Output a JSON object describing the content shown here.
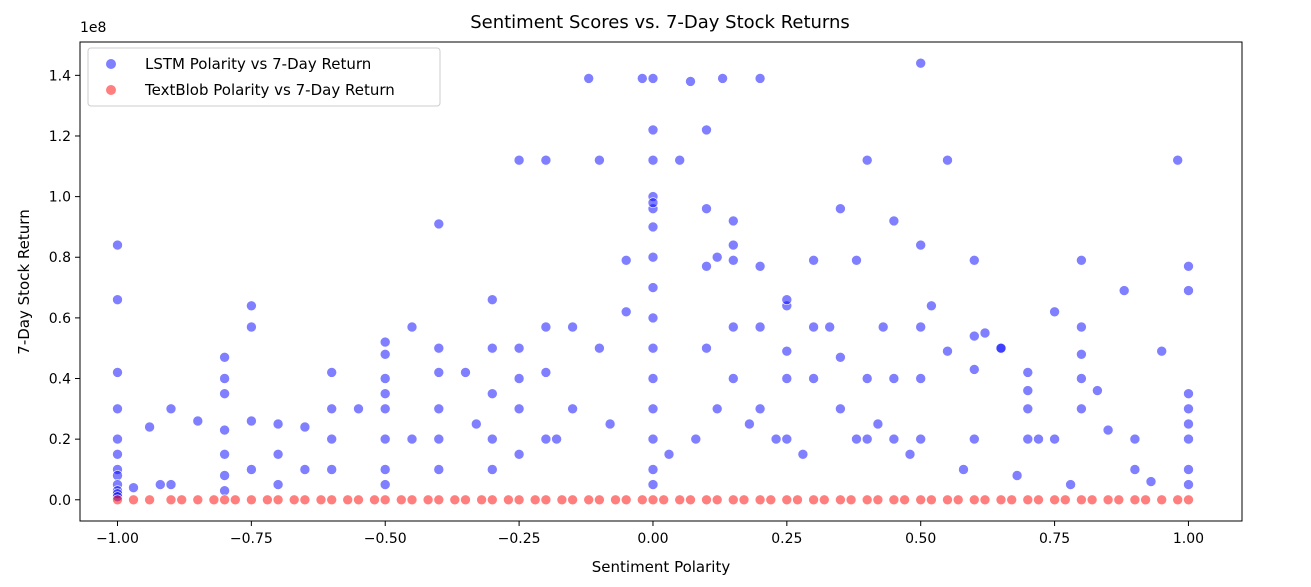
{
  "chart_data": {
    "type": "scatter",
    "title": "Sentiment Scores vs. 7-Day Stock Returns",
    "xlabel": "Sentiment Polarity",
    "ylabel": "7-Day Stock Return",
    "y_multiplier_label": "1e8",
    "xlim": [
      -1.07,
      1.1
    ],
    "ylim": [
      -0.07,
      1.51
    ],
    "x_ticks": [
      -1.0,
      -0.75,
      -0.5,
      -0.25,
      0.0,
      0.25,
      0.5,
      0.75,
      1.0
    ],
    "x_tick_labels": [
      "−1.00",
      "−0.75",
      "−0.50",
      "−0.25",
      "0.00",
      "0.25",
      "0.50",
      "0.75",
      "1.00"
    ],
    "y_ticks": [
      0.0,
      0.2,
      0.4,
      0.6,
      0.8,
      1.0,
      1.2,
      1.4
    ],
    "y_tick_labels": [
      "0.0",
      "0.2",
      "0.4",
      "0.6",
      "0.8",
      "1.0",
      "1.2",
      "1.4"
    ],
    "grid": false,
    "legend_position": "top-left",
    "series": [
      {
        "name": "LSTM Polarity vs 7-Day Return",
        "color": "#0000ff",
        "alpha": 0.5,
        "x": [
          -1.0,
          -1.0,
          -1.0,
          -1.0,
          -1.0,
          -1.0,
          -1.0,
          -1.0,
          -1.0,
          -1.0,
          -1.0,
          -1.0,
          -0.97,
          -0.94,
          -0.9,
          -0.9,
          -0.8,
          -0.8,
          -0.8,
          -0.8,
          -0.8,
          -0.8,
          -0.8,
          -0.75,
          -0.75,
          -0.75,
          -0.75,
          -0.7,
          -0.7,
          -0.7,
          -0.65,
          -0.6,
          -0.6,
          -0.6,
          -0.6,
          -0.5,
          -0.5,
          -0.5,
          -0.5,
          -0.5,
          -0.5,
          -0.5,
          -0.5,
          -0.45,
          -0.4,
          -0.4,
          -0.4,
          -0.4,
          -0.4,
          -0.4,
          -0.35,
          -0.3,
          -0.3,
          -0.3,
          -0.3,
          -0.3,
          -0.25,
          -0.25,
          -0.25,
          -0.25,
          -0.25,
          -0.2,
          -0.2,
          -0.2,
          -0.2,
          -0.15,
          -0.15,
          -0.12,
          -0.1,
          -0.1,
          -0.05,
          -0.05,
          -0.02,
          0.0,
          0.0,
          0.0,
          0.0,
          0.0,
          0.0,
          0.0,
          0.0,
          0.0,
          0.0,
          0.0,
          0.0,
          0.0,
          0.0,
          0.0,
          0.0,
          0.05,
          0.07,
          0.1,
          0.1,
          0.1,
          0.1,
          0.12,
          0.13,
          0.15,
          0.15,
          0.15,
          0.15,
          0.15,
          0.2,
          0.2,
          0.2,
          0.2,
          0.25,
          0.25,
          0.25,
          0.25,
          0.25,
          0.3,
          0.3,
          0.3,
          0.33,
          0.35,
          0.35,
          0.35,
          0.38,
          0.4,
          0.4,
          0.4,
          0.43,
          0.45,
          0.45,
          0.45,
          0.5,
          0.5,
          0.5,
          0.5,
          0.5,
          0.52,
          0.55,
          0.55,
          0.6,
          0.6,
          0.6,
          0.6,
          0.62,
          0.65,
          0.65,
          0.7,
          0.7,
          0.7,
          0.7,
          0.75,
          0.75,
          0.8,
          0.8,
          0.8,
          0.8,
          0.8,
          0.83,
          0.85,
          0.88,
          0.9,
          0.9,
          0.95,
          0.98,
          1.0,
          1.0,
          1.0,
          1.0,
          1.0,
          1.0,
          1.0,
          1.0,
          -0.85,
          -0.65,
          -0.55,
          -0.33,
          -0.18,
          -0.08,
          0.03,
          0.08,
          0.18,
          0.23,
          0.28,
          0.38,
          0.48,
          0.58,
          0.68,
          0.78,
          0.93,
          -0.92,
          -0.45,
          0.12,
          0.42,
          0.72
        ],
        "y": [
          0.84,
          0.66,
          0.42,
          0.3,
          0.2,
          0.15,
          0.1,
          0.08,
          0.05,
          0.03,
          0.02,
          0.01,
          0.04,
          0.24,
          0.3,
          0.05,
          0.47,
          0.4,
          0.35,
          0.23,
          0.15,
          0.08,
          0.03,
          0.64,
          0.57,
          0.26,
          0.1,
          0.25,
          0.15,
          0.05,
          0.24,
          0.42,
          0.3,
          0.2,
          0.1,
          0.52,
          0.48,
          0.4,
          0.35,
          0.3,
          0.2,
          0.1,
          0.05,
          0.57,
          0.91,
          0.5,
          0.42,
          0.3,
          0.2,
          0.1,
          0.42,
          0.66,
          0.5,
          0.35,
          0.2,
          0.1,
          1.12,
          0.5,
          0.4,
          0.3,
          0.15,
          1.12,
          0.57,
          0.42,
          0.2,
          0.57,
          0.3,
          1.39,
          1.12,
          0.5,
          0.79,
          0.62,
          1.39,
          1.39,
          1.22,
          1.12,
          1.0,
          0.96,
          0.9,
          0.8,
          0.7,
          0.6,
          0.5,
          0.4,
          0.3,
          0.2,
          0.1,
          0.05,
          0.98,
          1.12,
          1.38,
          0.96,
          0.77,
          0.5,
          1.22,
          0.8,
          1.39,
          0.92,
          0.79,
          0.57,
          0.4,
          0.84,
          0.77,
          0.57,
          0.3,
          1.39,
          0.64,
          0.49,
          0.4,
          0.2,
          0.66,
          0.57,
          0.4,
          0.79,
          0.57,
          0.47,
          0.3,
          0.96,
          0.79,
          0.4,
          0.2,
          1.12,
          0.57,
          0.4,
          0.2,
          0.92,
          0.84,
          0.57,
          0.4,
          0.2,
          1.44,
          0.64,
          0.49,
          1.12,
          0.54,
          0.43,
          0.2,
          0.79,
          0.55,
          0.5,
          0.5,
          0.42,
          0.3,
          0.2,
          0.36,
          0.2,
          0.62,
          0.57,
          0.48,
          0.4,
          0.3,
          0.79,
          0.36,
          0.23,
          0.69,
          0.2,
          0.1,
          0.49,
          1.12,
          0.77,
          0.69,
          0.35,
          0.3,
          0.25,
          0.2,
          0.1,
          0.05,
          0.26,
          0.1,
          0.3,
          0.25,
          0.2,
          0.25,
          0.15,
          0.2,
          0.25,
          0.2,
          0.15,
          0.2,
          0.15,
          0.1,
          0.08,
          0.05,
          0.06,
          0.05,
          0.2,
          0.3,
          0.25,
          0.2
        ]
      },
      {
        "name": "TextBlob Polarity vs 7-Day Return",
        "color": "#ff0000",
        "alpha": 0.5,
        "x": [
          -1.0,
          -0.97,
          -0.94,
          -0.9,
          -0.88,
          -0.85,
          -0.82,
          -0.8,
          -0.78,
          -0.75,
          -0.72,
          -0.7,
          -0.67,
          -0.65,
          -0.62,
          -0.6,
          -0.57,
          -0.55,
          -0.52,
          -0.5,
          -0.47,
          -0.45,
          -0.42,
          -0.4,
          -0.37,
          -0.35,
          -0.32,
          -0.3,
          -0.27,
          -0.25,
          -0.22,
          -0.2,
          -0.17,
          -0.15,
          -0.12,
          -0.1,
          -0.07,
          -0.05,
          -0.02,
          0.0,
          0.02,
          0.05,
          0.07,
          0.1,
          0.12,
          0.15,
          0.17,
          0.2,
          0.22,
          0.25,
          0.27,
          0.3,
          0.32,
          0.35,
          0.37,
          0.4,
          0.42,
          0.45,
          0.47,
          0.5,
          0.52,
          0.55,
          0.57,
          0.6,
          0.62,
          0.65,
          0.67,
          0.7,
          0.72,
          0.75,
          0.77,
          0.8,
          0.82,
          0.85,
          0.87,
          0.9,
          0.92,
          0.95,
          0.98,
          1.0
        ],
        "y": [
          0,
          0,
          0,
          0,
          0,
          0,
          0,
          0,
          0,
          0,
          0,
          0,
          0,
          0,
          0,
          0,
          0,
          0,
          0,
          0,
          0,
          0,
          0,
          0,
          0,
          0,
          0,
          0,
          0,
          0,
          0,
          0,
          0,
          0,
          0,
          0,
          0,
          0,
          0,
          0,
          0,
          0,
          0,
          0,
          0,
          0,
          0,
          0,
          0,
          0,
          0,
          0,
          0,
          0,
          0,
          0,
          0,
          0,
          0,
          0,
          0,
          0,
          0,
          0,
          0,
          0,
          0,
          0,
          0,
          0,
          0,
          0,
          0,
          0,
          0,
          0,
          0,
          0,
          0,
          0
        ]
      }
    ]
  }
}
